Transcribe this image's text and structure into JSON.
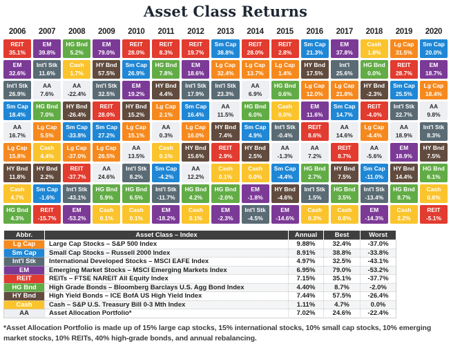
{
  "title": "Asset Class Returns",
  "footnote": "*Asset Allocation Portfolio is made up of 15% large cap stocks, 15% international stocks, 10% small cap stocks, 10% emerging market stocks, 10% REITs, 40% high-grade bonds, and annual rebalancing.",
  "asset_classes": {
    "lgcap": {
      "label": "Lg Cap",
      "color": "#F6891E",
      "text_color": "#FFFFFF"
    },
    "smcap": {
      "label": "Sm Cap",
      "color": "#1F87D5",
      "text_color": "#FFFFFF"
    },
    "intl": {
      "label": "Int'l Stk",
      "color": "#5A6B74",
      "text_color": "#FFFFFF"
    },
    "em": {
      "label": "EM",
      "color": "#7C3A97",
      "text_color": "#FFFFFF"
    },
    "reit": {
      "label": "REIT",
      "color": "#E23B2F",
      "text_color": "#FFFFFF"
    },
    "hgbnd": {
      "label": "HG Bnd",
      "color": "#62AC46",
      "text_color": "#FFFFFF"
    },
    "hybnd": {
      "label": "HY Bnd",
      "color": "#614B3E",
      "text_color": "#FFFFFF"
    },
    "cash": {
      "label": "Cash",
      "color": "#FBC42D",
      "text_color": "#FFFFFF"
    },
    "aa": {
      "label": "AA",
      "color": "#EDEFF2",
      "text_color": "#2B2B2B"
    }
  },
  "chart_data": {
    "type": "heatmap",
    "title": "Asset Class Returns",
    "layout": "columns are years, cells ranked best-to-worst top-to-bottom",
    "years": [
      "2006",
      "2007",
      "2008",
      "2009",
      "2010",
      "2011",
      "2012",
      "2013",
      "2014",
      "2015",
      "2016",
      "2017",
      "2018",
      "2019",
      "2020"
    ],
    "columns": {
      "2006": [
        {
          "k": "reit",
          "label": "REIT",
          "value": "35.1%"
        },
        {
          "k": "em",
          "label": "EM",
          "value": "32.6%"
        },
        {
          "k": "intl",
          "label": "Int'l Stk",
          "value": "26.9%"
        },
        {
          "k": "smcap",
          "label": "Sm Cap",
          "value": "18.4%"
        },
        {
          "k": "aa",
          "label": "AA",
          "value": "16.7%"
        },
        {
          "k": "lgcap",
          "label": "Lg Cap",
          "value": "15.8%"
        },
        {
          "k": "hybnd",
          "label": "HY Bnd",
          "value": "11.8%"
        },
        {
          "k": "cash",
          "label": "Cash",
          "value": "4.7%"
        },
        {
          "k": "hgbnd",
          "label": "HG Bnd",
          "value": "4.3%"
        }
      ],
      "2007": [
        {
          "k": "em",
          "label": "EM",
          "value": "39.8%"
        },
        {
          "k": "intl",
          "label": "Int'l Stk",
          "value": "11.6%"
        },
        {
          "k": "aa",
          "label": "AA",
          "value": "7.6%"
        },
        {
          "k": "hgbnd",
          "label": "HG Bnd",
          "value": "7.0%"
        },
        {
          "k": "lgcap",
          "label": "Lg Cap",
          "value": "5.5%"
        },
        {
          "k": "cash",
          "label": "Cash",
          "value": "4.4%"
        },
        {
          "k": "hybnd",
          "label": "HY Bnd",
          "value": "2.2%"
        },
        {
          "k": "smcap",
          "label": "Sm Cap",
          "value": "-1.6%"
        },
        {
          "k": "reit",
          "label": "REIT",
          "value": "-15.7%"
        }
      ],
      "2008": [
        {
          "k": "hgbnd",
          "label": "HG Bnd",
          "value": "5.2%"
        },
        {
          "k": "cash",
          "label": "Cash",
          "value": "1.7%"
        },
        {
          "k": "aa",
          "label": "AA",
          "value": "-22.4%"
        },
        {
          "k": "hybnd",
          "label": "HY Bnd",
          "value": "-26.4%"
        },
        {
          "k": "smcap",
          "label": "Sm Cap",
          "value": "-33.8%"
        },
        {
          "k": "lgcap",
          "label": "Lg Cap",
          "value": "-37.0%"
        },
        {
          "k": "reit",
          "label": "REIT",
          "value": "-37.7%"
        },
        {
          "k": "intl",
          "label": "Int'l Stk",
          "value": "-43.1%"
        },
        {
          "k": "em",
          "label": "EM",
          "value": "-53.2%"
        }
      ],
      "2009": [
        {
          "k": "em",
          "label": "EM",
          "value": "79.0%"
        },
        {
          "k": "hybnd",
          "label": "HY Bnd",
          "value": "57.5%"
        },
        {
          "k": "intl",
          "label": "Int'l Stk",
          "value": "32.5%"
        },
        {
          "k": "reit",
          "label": "REIT",
          "value": "28.0%"
        },
        {
          "k": "smcap",
          "label": "Sm Cap",
          "value": "27.2%"
        },
        {
          "k": "lgcap",
          "label": "Lg Cap",
          "value": "26.5%"
        },
        {
          "k": "aa",
          "label": "AA",
          "value": "24.6%"
        },
        {
          "k": "hgbnd",
          "label": "HG Bnd",
          "value": "5.9%"
        },
        {
          "k": "cash",
          "label": "Cash",
          "value": "0.1%"
        }
      ],
      "2010": [
        {
          "k": "reit",
          "label": "REIT",
          "value": "28.0%"
        },
        {
          "k": "smcap",
          "label": "Sm Cap",
          "value": "26.9%"
        },
        {
          "k": "em",
          "label": "EM",
          "value": "19.2%"
        },
        {
          "k": "hybnd",
          "label": "HY Bnd",
          "value": "15.2%"
        },
        {
          "k": "lgcap",
          "label": "Lg Cap",
          "value": "15.1%"
        },
        {
          "k": "aa",
          "label": "AA",
          "value": "13.5%"
        },
        {
          "k": "intl",
          "label": "Int'l Stk",
          "value": "8.2%"
        },
        {
          "k": "hgbnd",
          "label": "HG Bnd",
          "value": "6.5%"
        },
        {
          "k": "cash",
          "label": "Cash",
          "value": "0.1%"
        }
      ],
      "2011": [
        {
          "k": "reit",
          "label": "REIT",
          "value": "8.3%"
        },
        {
          "k": "hgbnd",
          "label": "HG Bnd",
          "value": "7.8%"
        },
        {
          "k": "hybnd",
          "label": "HY Bnd",
          "value": "4.4%"
        },
        {
          "k": "lgcap",
          "label": "Lg Cap",
          "value": "2.1%"
        },
        {
          "k": "aa",
          "label": "AA",
          "value": "0.3%"
        },
        {
          "k": "cash",
          "label": "Cash",
          "value": "0.1%"
        },
        {
          "k": "smcap",
          "label": "Sm Cap",
          "value": "-4.2%"
        },
        {
          "k": "intl",
          "label": "Int'l Stk",
          "value": "-11.7%"
        },
        {
          "k": "em",
          "label": "EM",
          "value": "-18.2%"
        }
      ],
      "2012": [
        {
          "k": "reit",
          "label": "REIT",
          "value": "19.7%"
        },
        {
          "k": "em",
          "label": "EM",
          "value": "18.6%"
        },
        {
          "k": "intl",
          "label": "Int'l Stk",
          "value": "17.9%"
        },
        {
          "k": "smcap",
          "label": "Sm Cap",
          "value": "16.4%"
        },
        {
          "k": "lgcap",
          "label": "Lg Cap",
          "value": "16.0%"
        },
        {
          "k": "hybnd",
          "label": "HY Bnd",
          "value": "15.6%"
        },
        {
          "k": "aa",
          "label": "AA",
          "value": "12.2%"
        },
        {
          "k": "hgbnd",
          "label": "HG Bnd",
          "value": "4.2%"
        },
        {
          "k": "cash",
          "label": "Cash",
          "value": "0.1%"
        }
      ],
      "2013": [
        {
          "k": "smcap",
          "label": "Sm Cap",
          "value": "38.8%"
        },
        {
          "k": "lgcap",
          "label": "Lg Cap",
          "value": "32.4%"
        },
        {
          "k": "intl",
          "label": "Int'l Stk",
          "value": "23.3%"
        },
        {
          "k": "aa",
          "label": "AA",
          "value": "11.5%"
        },
        {
          "k": "hybnd",
          "label": "HY Bnd",
          "value": "7.4%"
        },
        {
          "k": "reit",
          "label": "REIT",
          "value": "2.9%"
        },
        {
          "k": "cash",
          "label": "Cash",
          "value": "0.1%"
        },
        {
          "k": "hgbnd",
          "label": "HG Bnd",
          "value": "-2.0%"
        },
        {
          "k": "em",
          "label": "EM",
          "value": "-2.3%"
        }
      ],
      "2014": [
        {
          "k": "reit",
          "label": "REIT",
          "value": "28.0%"
        },
        {
          "k": "lgcap",
          "label": "Lg Cap",
          "value": "13.7%"
        },
        {
          "k": "aa",
          "label": "AA",
          "value": "6.9%"
        },
        {
          "k": "hgbnd",
          "label": "HG Bnd",
          "value": "6.0%"
        },
        {
          "k": "smcap",
          "label": "Sm Cap",
          "value": "4.9%"
        },
        {
          "k": "hybnd",
          "label": "HY Bnd",
          "value": "2.5%"
        },
        {
          "k": "cash",
          "label": "Cash",
          "value": "0.0%"
        },
        {
          "k": "em",
          "label": "EM",
          "value": "-1.8%"
        },
        {
          "k": "intl",
          "label": "Int'l Stk",
          "value": "-4.5%"
        }
      ],
      "2015": [
        {
          "k": "reit",
          "label": "REIT",
          "value": "2.8%"
        },
        {
          "k": "lgcap",
          "label": "Lg Cap",
          "value": "1.4%"
        },
        {
          "k": "hgbnd",
          "label": "HG Bnd",
          "value": "0.6%"
        },
        {
          "k": "cash",
          "label": "Cash",
          "value": "0.0%"
        },
        {
          "k": "intl",
          "label": "Int'l Stk",
          "value": "-0.4%"
        },
        {
          "k": "aa",
          "label": "AA",
          "value": "-1.3%"
        },
        {
          "k": "smcap",
          "label": "Sm Cap",
          "value": "-4.4%"
        },
        {
          "k": "hybnd",
          "label": "HY Bnd",
          "value": "-4.6%"
        },
        {
          "k": "em",
          "label": "EM",
          "value": "-14.6%"
        }
      ],
      "2016": [
        {
          "k": "smcap",
          "label": "Sm Cap",
          "value": "21.3%"
        },
        {
          "k": "hybnd",
          "label": "HY Bnd",
          "value": "17.5%"
        },
        {
          "k": "lgcap",
          "label": "Lg Cap",
          "value": "12.0%"
        },
        {
          "k": "em",
          "label": "EM",
          "value": "11.6%"
        },
        {
          "k": "reit",
          "label": "REIT",
          "value": "8.6%"
        },
        {
          "k": "aa",
          "label": "AA",
          "value": "7.2%"
        },
        {
          "k": "hgbnd",
          "label": "HG Bnd",
          "value": "2.7%"
        },
        {
          "k": "intl",
          "label": "Int'l Stk",
          "value": "1.5%"
        },
        {
          "k": "cash",
          "label": "Cash",
          "value": "0.3%"
        }
      ],
      "2017": [
        {
          "k": "em",
          "label": "EM",
          "value": "37.8%"
        },
        {
          "k": "intl",
          "label": "Int'l",
          "value": "25.6%"
        },
        {
          "k": "lgcap",
          "label": "Lg Cap",
          "value": "21.8%"
        },
        {
          "k": "smcap",
          "label": "Sm Cap",
          "value": "14.7%"
        },
        {
          "k": "aa",
          "label": "AA",
          "value": "14.6%"
        },
        {
          "k": "reit",
          "label": "REIT",
          "value": "8.7%"
        },
        {
          "k": "hybnd",
          "label": "HY Bnd",
          "value": "7.5%"
        },
        {
          "k": "hgbnd",
          "label": "HG Bnd",
          "value": "3.5%"
        },
        {
          "k": "cash",
          "label": "Cash",
          "value": "0.8%"
        }
      ],
      "2018": [
        {
          "k": "cash",
          "label": "Cash",
          "value": "1.8%"
        },
        {
          "k": "hgbnd",
          "label": "HG Bnd",
          "value": "0.0%"
        },
        {
          "k": "hybnd",
          "label": "HY Bnd",
          "value": "-2.3%"
        },
        {
          "k": "reit",
          "label": "REIT",
          "value": "-4.0%"
        },
        {
          "k": "lgcap",
          "label": "Lg Cap",
          "value": "-4.4%"
        },
        {
          "k": "aa",
          "label": "AA",
          "value": "-5.6%"
        },
        {
          "k": "smcap",
          "label": "Sm Cap",
          "value": "-11.0%"
        },
        {
          "k": "intl",
          "label": "Int'l Stk",
          "value": "-13.4%"
        },
        {
          "k": "em",
          "label": "EM",
          "value": "-14.3%"
        }
      ],
      "2019": [
        {
          "k": "lgcap",
          "label": "Lg Cap",
          "value": "31.5%"
        },
        {
          "k": "reit",
          "label": "REIT",
          "value": "28.7%"
        },
        {
          "k": "smcap",
          "label": "Sm Cap",
          "value": "25.5%"
        },
        {
          "k": "intl",
          "label": "Int'l Stk",
          "value": "22.7%"
        },
        {
          "k": "aa",
          "label": "AA",
          "value": "18.9%"
        },
        {
          "k": "em",
          "label": "EM",
          "value": "18.9%"
        },
        {
          "k": "hybnd",
          "label": "HY Bnd",
          "value": "14.4%"
        },
        {
          "k": "hgbnd",
          "label": "HG Bnd",
          "value": "8.7%"
        },
        {
          "k": "cash",
          "label": "Cash",
          "value": "2.2%"
        }
      ],
      "2020": [
        {
          "k": "smcap",
          "label": "Sm Cap",
          "value": "20.0%"
        },
        {
          "k": "em",
          "label": "EM",
          "value": "18.7%"
        },
        {
          "k": "lgcap",
          "label": "Lg Cap",
          "value": "18.4%"
        },
        {
          "k": "aa",
          "label": "AA",
          "value": "9.8%"
        },
        {
          "k": "intl",
          "label": "Int'l Stk",
          "value": "8.3%"
        },
        {
          "k": "hybnd",
          "label": "HY Bnd",
          "value": "7.5%"
        },
        {
          "k": "hgbnd",
          "label": "HG Bnd",
          "value": "6.1%"
        },
        {
          "k": "cash",
          "label": "Cash",
          "value": "0.6%"
        },
        {
          "k": "reit",
          "label": "REIT",
          "value": "-5.1%"
        }
      ]
    }
  },
  "legend_table": {
    "headers": [
      "Abbr.",
      "Asset Class – Index",
      "Annual",
      "Best",
      "Worst"
    ],
    "rows": [
      {
        "k": "lgcap",
        "abbr": "Lg Cap",
        "name": "Large Cap Stocks – S&P 500 Index",
        "annual": "9.88%",
        "best": "32.4%",
        "worst": "-37.0%"
      },
      {
        "k": "smcap",
        "abbr": "Sm Cap",
        "name": "Small Cap Stocks – Russell 2000 Index",
        "annual": "8.91%",
        "best": "38.8%",
        "worst": "-33.8%"
      },
      {
        "k": "intl",
        "abbr": "Int'l Stk",
        "name": "International Developed Stocks – MSCI EAFE Index",
        "annual": "4.97%",
        "best": "32.5%",
        "worst": "-43.1%"
      },
      {
        "k": "em",
        "abbr": "EM",
        "name": "Emerging Market Stocks – MSCI Emerging Markets Index",
        "annual": "6.95%",
        "best": "79.0%",
        "worst": "-53.2%"
      },
      {
        "k": "reit",
        "abbr": "REIT",
        "name": "REITs – FTSE NAREIT All Equity Index",
        "annual": "7.15%",
        "best": "35.1%",
        "worst": "-37.7%"
      },
      {
        "k": "hgbnd",
        "abbr": "HG Bnd",
        "name": "High Grade Bonds – Bloomberg Barclays U.S. Agg Bond Index",
        "annual": "4.40%",
        "best": "8.7%",
        "worst": "-2.0%"
      },
      {
        "k": "hybnd",
        "abbr": "HY Bnd",
        "name": "High Yield Bonds – ICE BofA US High Yield Index",
        "annual": "7.44%",
        "best": "57.5%",
        "worst": "-26.4%"
      },
      {
        "k": "cash",
        "abbr": "Cash",
        "name": "Cash – S&P U.S. Treasury Bill 0-3 Mth Index",
        "annual": "1.11%",
        "best": "4.7%",
        "worst": "0.0%"
      },
      {
        "k": "aa",
        "abbr": "AA",
        "name": "Asset Allocation Portfolio*",
        "annual": "7.02%",
        "best": "24.6%",
        "worst": "-22.4%"
      }
    ]
  }
}
